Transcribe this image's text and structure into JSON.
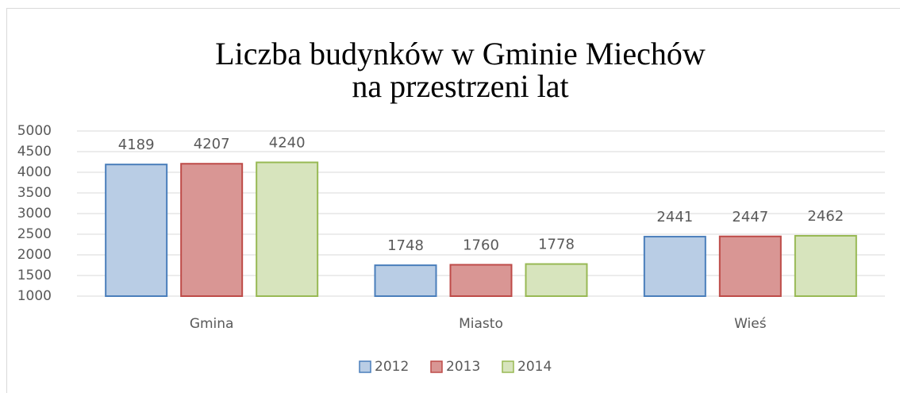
{
  "chart_data": {
    "type": "bar",
    "title": [
      "Liczba budynków w Gminie Miechów",
      "na przestrzeni lat"
    ],
    "categories": [
      "Gmina",
      "Miasto",
      "Wieś"
    ],
    "series": [
      {
        "name": "2012",
        "color": "#b9cde5",
        "edgecolor": "#4a7ebb",
        "values": [
          4189,
          1748,
          2441
        ]
      },
      {
        "name": "2013",
        "color": "#d99694",
        "edgecolor": "#be4b48",
        "values": [
          4207,
          1760,
          2447
        ]
      },
      {
        "name": "2014",
        "color": "#d7e4bd",
        "edgecolor": "#98b954",
        "values": [
          4240,
          1778,
          2462
        ]
      }
    ],
    "ylim": [
      1000,
      5000
    ],
    "yticks": [
      1000,
      1500,
      2000,
      2500,
      3000,
      3500,
      4000,
      4500,
      5000
    ],
    "grid": true,
    "legend": "bottom"
  }
}
